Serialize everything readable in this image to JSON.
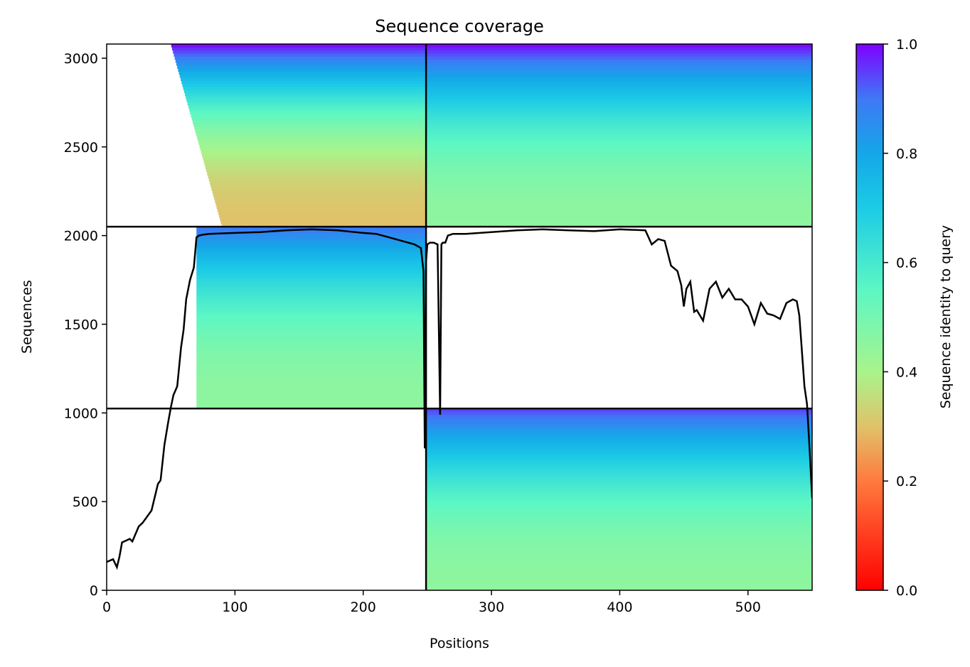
{
  "chart_data": {
    "type": "heatmap",
    "title": "Sequence coverage",
    "xlabel": "Positions",
    "ylabel": "Sequences",
    "xlim": [
      0,
      550
    ],
    "ylim": [
      0,
      3080
    ],
    "x_ticks": [
      0,
      100,
      200,
      300,
      400,
      500
    ],
    "y_ticks": [
      0,
      500,
      1000,
      1500,
      2000,
      2500,
      3000
    ],
    "colorbar": {
      "label": "Sequence identity to query",
      "colormap": "rainbow (red → purple)",
      "range": [
        0,
        1
      ],
      "ticks": [
        0.0,
        0.2,
        0.4,
        0.6,
        0.8,
        1.0
      ],
      "tick_labels": [
        "0.0",
        "0.2",
        "0.4",
        "0.6",
        "0.8",
        "1.0"
      ]
    },
    "divider_lines": {
      "vertical_x": 249,
      "horizontal_y": [
        1025,
        2050
      ]
    },
    "coverage_blocks": [
      {
        "x_range": [
          0,
          249
        ],
        "y_range": [
          1025,
          2050
        ],
        "identity_top": 0.9,
        "identity_bottom": 0.45,
        "filled_from_x": 70
      },
      {
        "x_range": [
          0,
          249
        ],
        "y_range": [
          2050,
          3080
        ],
        "identity_top": 1.0,
        "identity_bottom": 0.3,
        "filled_from_x": 50
      },
      {
        "x_range": [
          249,
          550
        ],
        "y_range": [
          0,
          1025
        ],
        "identity_top": 0.95,
        "identity_bottom": 0.45,
        "filled_from_x": 249
      },
      {
        "x_range": [
          249,
          550
        ],
        "y_range": [
          2050,
          3080
        ],
        "identity_top": 1.0,
        "identity_bottom": 0.45,
        "filled_from_x": 249
      }
    ],
    "coverage_line": {
      "color": "#000000",
      "x": [
        0,
        5,
        8,
        10,
        12,
        15,
        18,
        20,
        25,
        28,
        30,
        35,
        40,
        42,
        45,
        48,
        50,
        52,
        55,
        58,
        60,
        62,
        65,
        68,
        70,
        72,
        75,
        80,
        100,
        120,
        140,
        160,
        180,
        200,
        210,
        220,
        230,
        240,
        245,
        247,
        248,
        249,
        250,
        252,
        255,
        258,
        260,
        261,
        262,
        264,
        266,
        270,
        280,
        300,
        320,
        340,
        360,
        380,
        400,
        420,
        425,
        430,
        435,
        440,
        445,
        448,
        450,
        452,
        455,
        458,
        460,
        465,
        470,
        475,
        480,
        485,
        490,
        495,
        500,
        505,
        510,
        515,
        520,
        525,
        530,
        535,
        538,
        540,
        542,
        544,
        546,
        548,
        550
      ],
      "y": [
        160,
        175,
        130,
        190,
        270,
        280,
        290,
        275,
        360,
        380,
        400,
        450,
        600,
        620,
        820,
        950,
        1030,
        1100,
        1150,
        1370,
        1470,
        1640,
        1750,
        1820,
        1990,
        2000,
        2005,
        2010,
        2015,
        2020,
        2030,
        2035,
        2030,
        2015,
        2010,
        1990,
        1970,
        1950,
        1930,
        1800,
        800,
        1850,
        1950,
        1960,
        1960,
        1950,
        990,
        1950,
        1960,
        1960,
        2000,
        2010,
        2010,
        2020,
        2030,
        2035,
        2030,
        2025,
        2035,
        2030,
        1950,
        1980,
        1970,
        1830,
        1800,
        1720,
        1600,
        1700,
        1740,
        1570,
        1580,
        1520,
        1700,
        1740,
        1650,
        1700,
        1640,
        1640,
        1600,
        1500,
        1620,
        1560,
        1550,
        1530,
        1620,
        1640,
        1630,
        1550,
        1350,
        1150,
        1050,
        800,
        520
      ]
    }
  }
}
